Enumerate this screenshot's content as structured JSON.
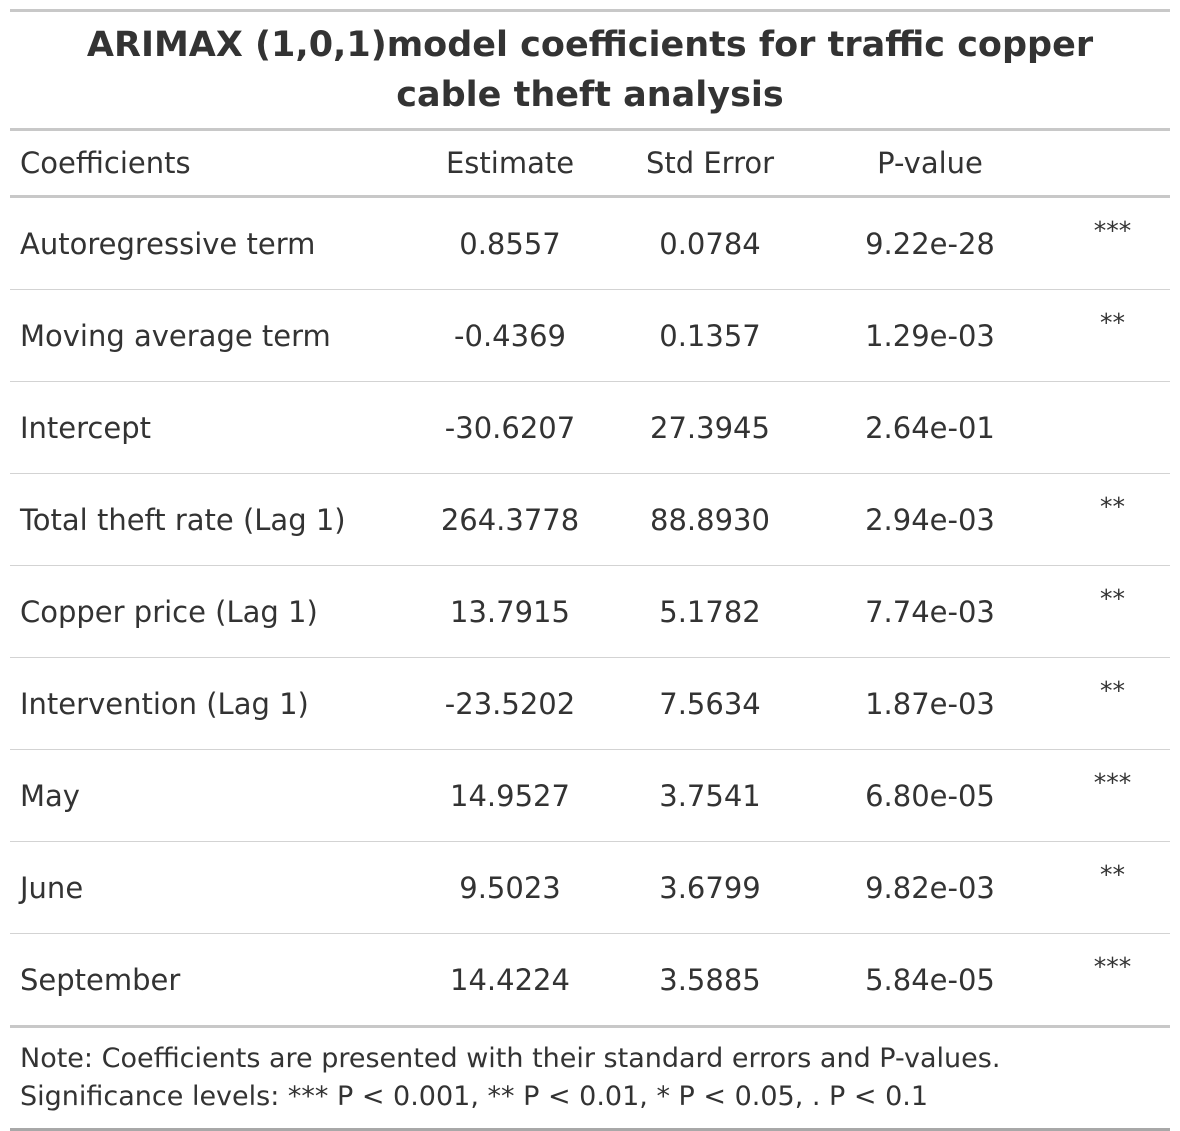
{
  "title": "ARIMAX (1,0,1)model coefficients for traffic copper cable theft analysis",
  "columns": [
    "Coefficients",
    "Estimate",
    "Std Error",
    "P-value",
    ""
  ],
  "rows": [
    {
      "coefficient": "Autoregressive term",
      "estimate": "0.8557",
      "std_error": "0.0784",
      "p_value": "9.22e-28",
      "significance": "***"
    },
    {
      "coefficient": "Moving average term",
      "estimate": "-0.4369",
      "std_error": "0.1357",
      "p_value": "1.29e-03",
      "significance": "**"
    },
    {
      "coefficient": "Intercept",
      "estimate": "-30.6207",
      "std_error": "27.3945",
      "p_value": "2.64e-01",
      "significance": ""
    },
    {
      "coefficient": "Total theft rate (Lag 1)",
      "estimate": "264.3778",
      "std_error": "88.8930",
      "p_value": "2.94e-03",
      "significance": "**"
    },
    {
      "coefficient": "Copper price (Lag 1)",
      "estimate": "13.7915",
      "std_error": "5.1782",
      "p_value": "7.74e-03",
      "significance": "**"
    },
    {
      "coefficient": "Intervention (Lag 1)",
      "estimate": "-23.5202",
      "std_error": "7.5634",
      "p_value": "1.87e-03",
      "significance": "**"
    },
    {
      "coefficient": "May",
      "estimate": "14.9527",
      "std_error": "3.7541",
      "p_value": "6.80e-05",
      "significance": "***"
    },
    {
      "coefficient": "June",
      "estimate": "9.5023",
      "std_error": "3.6799",
      "p_value": "9.82e-03",
      "significance": "**"
    },
    {
      "coefficient": "September",
      "estimate": "14.4224",
      "std_error": "3.5885",
      "p_value": "5.84e-05",
      "significance": "***"
    }
  ],
  "footnotes": [
    "Note: Coefficients are presented with their standard errors and P-values.",
    "Significance levels: *** P < 0.001, ** P < 0.01, * P < 0.05, . P < 0.1"
  ]
}
